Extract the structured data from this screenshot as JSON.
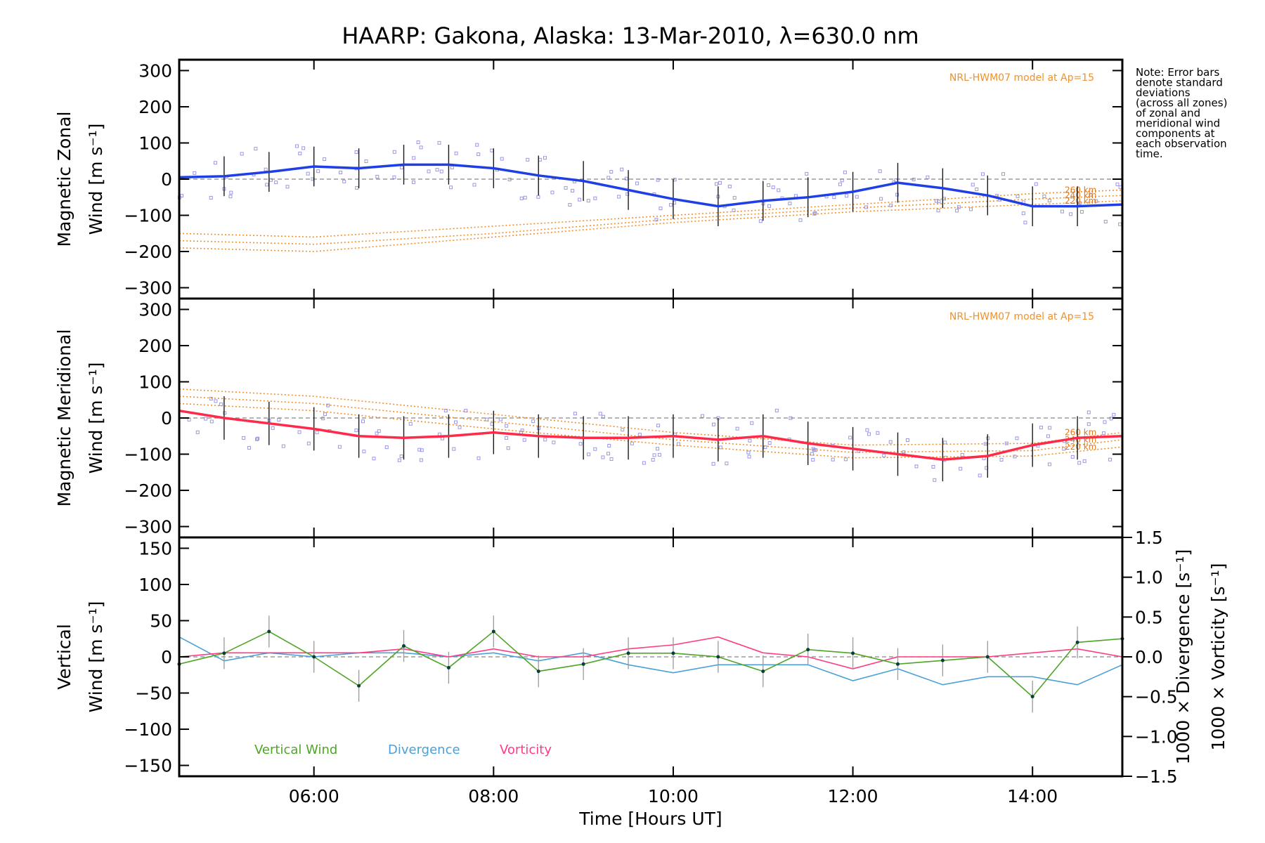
{
  "title": "HAARP: Gakona,  Alaska: 13-Mar-2010, λ=630.0 nm",
  "note_lines": [
    "Note: Error bars",
    "denote standard",
    "deviations",
    "(across all zones)",
    "of zonal and",
    "meridional wind",
    "components at",
    "each observation",
    "time."
  ],
  "colors": {
    "zonal": "#1f3fe6",
    "meridional": "#ff2a4a",
    "vertical": "#4ea526",
    "divergence": "#4aa0d8",
    "vorticity": "#ff3a86",
    "model": "#f0912a",
    "scatter": "#9a98e0"
  },
  "chart_data": [
    {
      "type": "line",
      "panel": "zonal",
      "ylabel_line1": "Magnetic Zonal",
      "ylabel_line2": "Wind [m s⁻¹]",
      "ylim": [
        -330,
        330
      ],
      "yticks": [
        -300,
        -200,
        -100,
        0,
        100,
        200,
        300
      ],
      "model_label": "NRL-HWM07 model at Ap=15",
      "model_alt_labels": [
        "260 km",
        "240 km",
        "220 km"
      ],
      "x": [
        4.5,
        5.0,
        5.5,
        6.0,
        6.5,
        7.0,
        7.5,
        8.0,
        8.5,
        9.0,
        9.5,
        10.0,
        10.5,
        11.0,
        11.5,
        12.0,
        12.5,
        13.0,
        13.5,
        14.0,
        14.5,
        15.0
      ],
      "series": [
        {
          "values": [
            5,
            8,
            20,
            35,
            30,
            40,
            40,
            30,
            10,
            -5,
            -30,
            -55,
            -75,
            -60,
            -50,
            -35,
            -10,
            -25,
            -45,
            -75,
            -75,
            -70
          ]
        }
      ],
      "error": 55,
      "models": [
        {
          "x": [
            4.5,
            6,
            8,
            10,
            12,
            14,
            15
          ],
          "values": [
            -150,
            -160,
            -130,
            -100,
            -70,
            -40,
            -30
          ]
        },
        {
          "x": [
            4.5,
            6,
            8,
            10,
            12,
            14,
            15
          ],
          "values": [
            -170,
            -180,
            -150,
            -110,
            -80,
            -55,
            -45
          ]
        },
        {
          "x": [
            4.5,
            6,
            8,
            10,
            12,
            14,
            15
          ],
          "values": [
            -190,
            -200,
            -160,
            -120,
            -90,
            -70,
            -60
          ]
        }
      ]
    },
    {
      "type": "line",
      "panel": "meridional",
      "ylabel_line1": "Magnetic Meridional",
      "ylabel_line2": "Wind [m s⁻¹]",
      "ylim": [
        -330,
        330
      ],
      "yticks": [
        -300,
        -200,
        -100,
        0,
        100,
        200,
        300
      ],
      "model_label": "NRL-HWM07 model at Ap=15",
      "model_alt_labels": [
        "260 km",
        "240 km",
        "220 km"
      ],
      "x": [
        4.5,
        5.0,
        5.5,
        6.0,
        6.5,
        7.0,
        7.5,
        8.0,
        8.5,
        9.0,
        9.5,
        10.0,
        10.5,
        11.0,
        11.5,
        12.0,
        12.5,
        13.0,
        13.5,
        14.0,
        14.5,
        15.0
      ],
      "series": [
        {
          "values": [
            20,
            0,
            -15,
            -30,
            -50,
            -55,
            -50,
            -40,
            -50,
            -55,
            -55,
            -50,
            -60,
            -50,
            -70,
            -85,
            -100,
            -115,
            -105,
            -75,
            -55,
            -50
          ]
        }
      ],
      "error": 60,
      "models": [
        {
          "x": [
            4.5,
            6,
            8,
            10,
            12,
            14,
            15
          ],
          "values": [
            80,
            60,
            10,
            -40,
            -75,
            -70,
            -40
          ]
        },
        {
          "x": [
            4.5,
            6,
            8,
            10,
            12,
            14,
            15
          ],
          "values": [
            60,
            40,
            -10,
            -60,
            -95,
            -90,
            -60
          ]
        },
        {
          "x": [
            4.5,
            6,
            8,
            10,
            12,
            14,
            15
          ],
          "values": [
            40,
            20,
            -30,
            -75,
            -110,
            -105,
            -80
          ]
        }
      ]
    },
    {
      "type": "line",
      "panel": "vertical",
      "ylabel_line1": "Vertical",
      "ylabel_line2": "Wind [m s⁻¹]",
      "ylabel_right1": "1000 × Divergence [s⁻¹]",
      "ylabel_right2": "1000 × Vorticity [s⁻¹]",
      "ylim": [
        -165,
        165
      ],
      "yticks": [
        -150,
        -100,
        -50,
        0,
        50,
        100,
        150
      ],
      "y2lim": [
        -1.5,
        1.5
      ],
      "y2ticks": [
        -1.5,
        -1.0,
        -0.5,
        0.0,
        0.5,
        1.0,
        1.5
      ],
      "y2ticklabels": [
        "−1.5",
        "−1.0",
        "−0.5",
        "0.0",
        "0.5",
        "1.0",
        "1.5"
      ],
      "x": [
        4.5,
        5.0,
        5.5,
        6.0,
        6.5,
        7.0,
        7.5,
        8.0,
        8.5,
        9.0,
        9.5,
        10.0,
        10.5,
        11.0,
        11.5,
        12.0,
        12.5,
        13.0,
        13.5,
        14.0,
        14.5,
        15.0
      ],
      "series": [
        {
          "name": "Vertical Wind",
          "values": [
            -10,
            5,
            35,
            0,
            -40,
            15,
            -15,
            35,
            -20,
            -10,
            5,
            5,
            0,
            -20,
            10,
            5,
            -10,
            -5,
            0,
            -55,
            20,
            25
          ]
        },
        {
          "name": "Divergence",
          "values": [
            0.25,
            -0.05,
            0.05,
            0.0,
            0.05,
            0.05,
            0.0,
            0.05,
            -0.05,
            0.05,
            -0.1,
            -0.2,
            -0.1,
            -0.1,
            -0.1,
            -0.3,
            -0.15,
            -0.35,
            -0.25,
            -0.25,
            -0.35,
            -0.1
          ]
        },
        {
          "name": "Vorticity",
          "values": [
            0.0,
            0.05,
            0.05,
            0.05,
            0.05,
            0.1,
            0.0,
            0.1,
            0.0,
            0.0,
            0.1,
            0.15,
            0.25,
            0.05,
            0.0,
            -0.15,
            0.0,
            0.0,
            0.0,
            0.05,
            0.1,
            0.0
          ]
        }
      ]
    }
  ],
  "xaxis": {
    "label": "Time [Hours UT]",
    "xlim": [
      4.5,
      15.0
    ],
    "ticks": [
      6,
      8,
      10,
      12,
      14
    ],
    "ticklabels": [
      "06:00",
      "08:00",
      "10:00",
      "12:00",
      "14:00"
    ]
  }
}
